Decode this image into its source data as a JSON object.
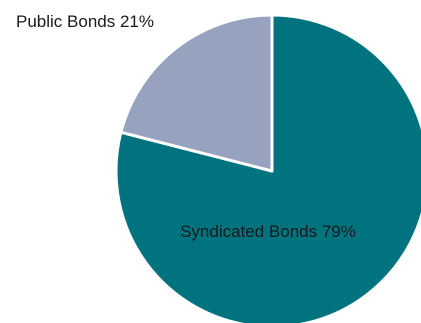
{
  "chart_data": {
    "type": "pie",
    "title": "",
    "slices": [
      {
        "label": "Syndicated Bonds 79%",
        "value": 79,
        "color": "#00737e"
      },
      {
        "label": "Public Bonds 21%",
        "value": 21,
        "color": "#97a2bf"
      }
    ],
    "start": "12 o'clock",
    "direction": "clockwise",
    "slice_border_color": "#ffffff",
    "legend": "none"
  }
}
